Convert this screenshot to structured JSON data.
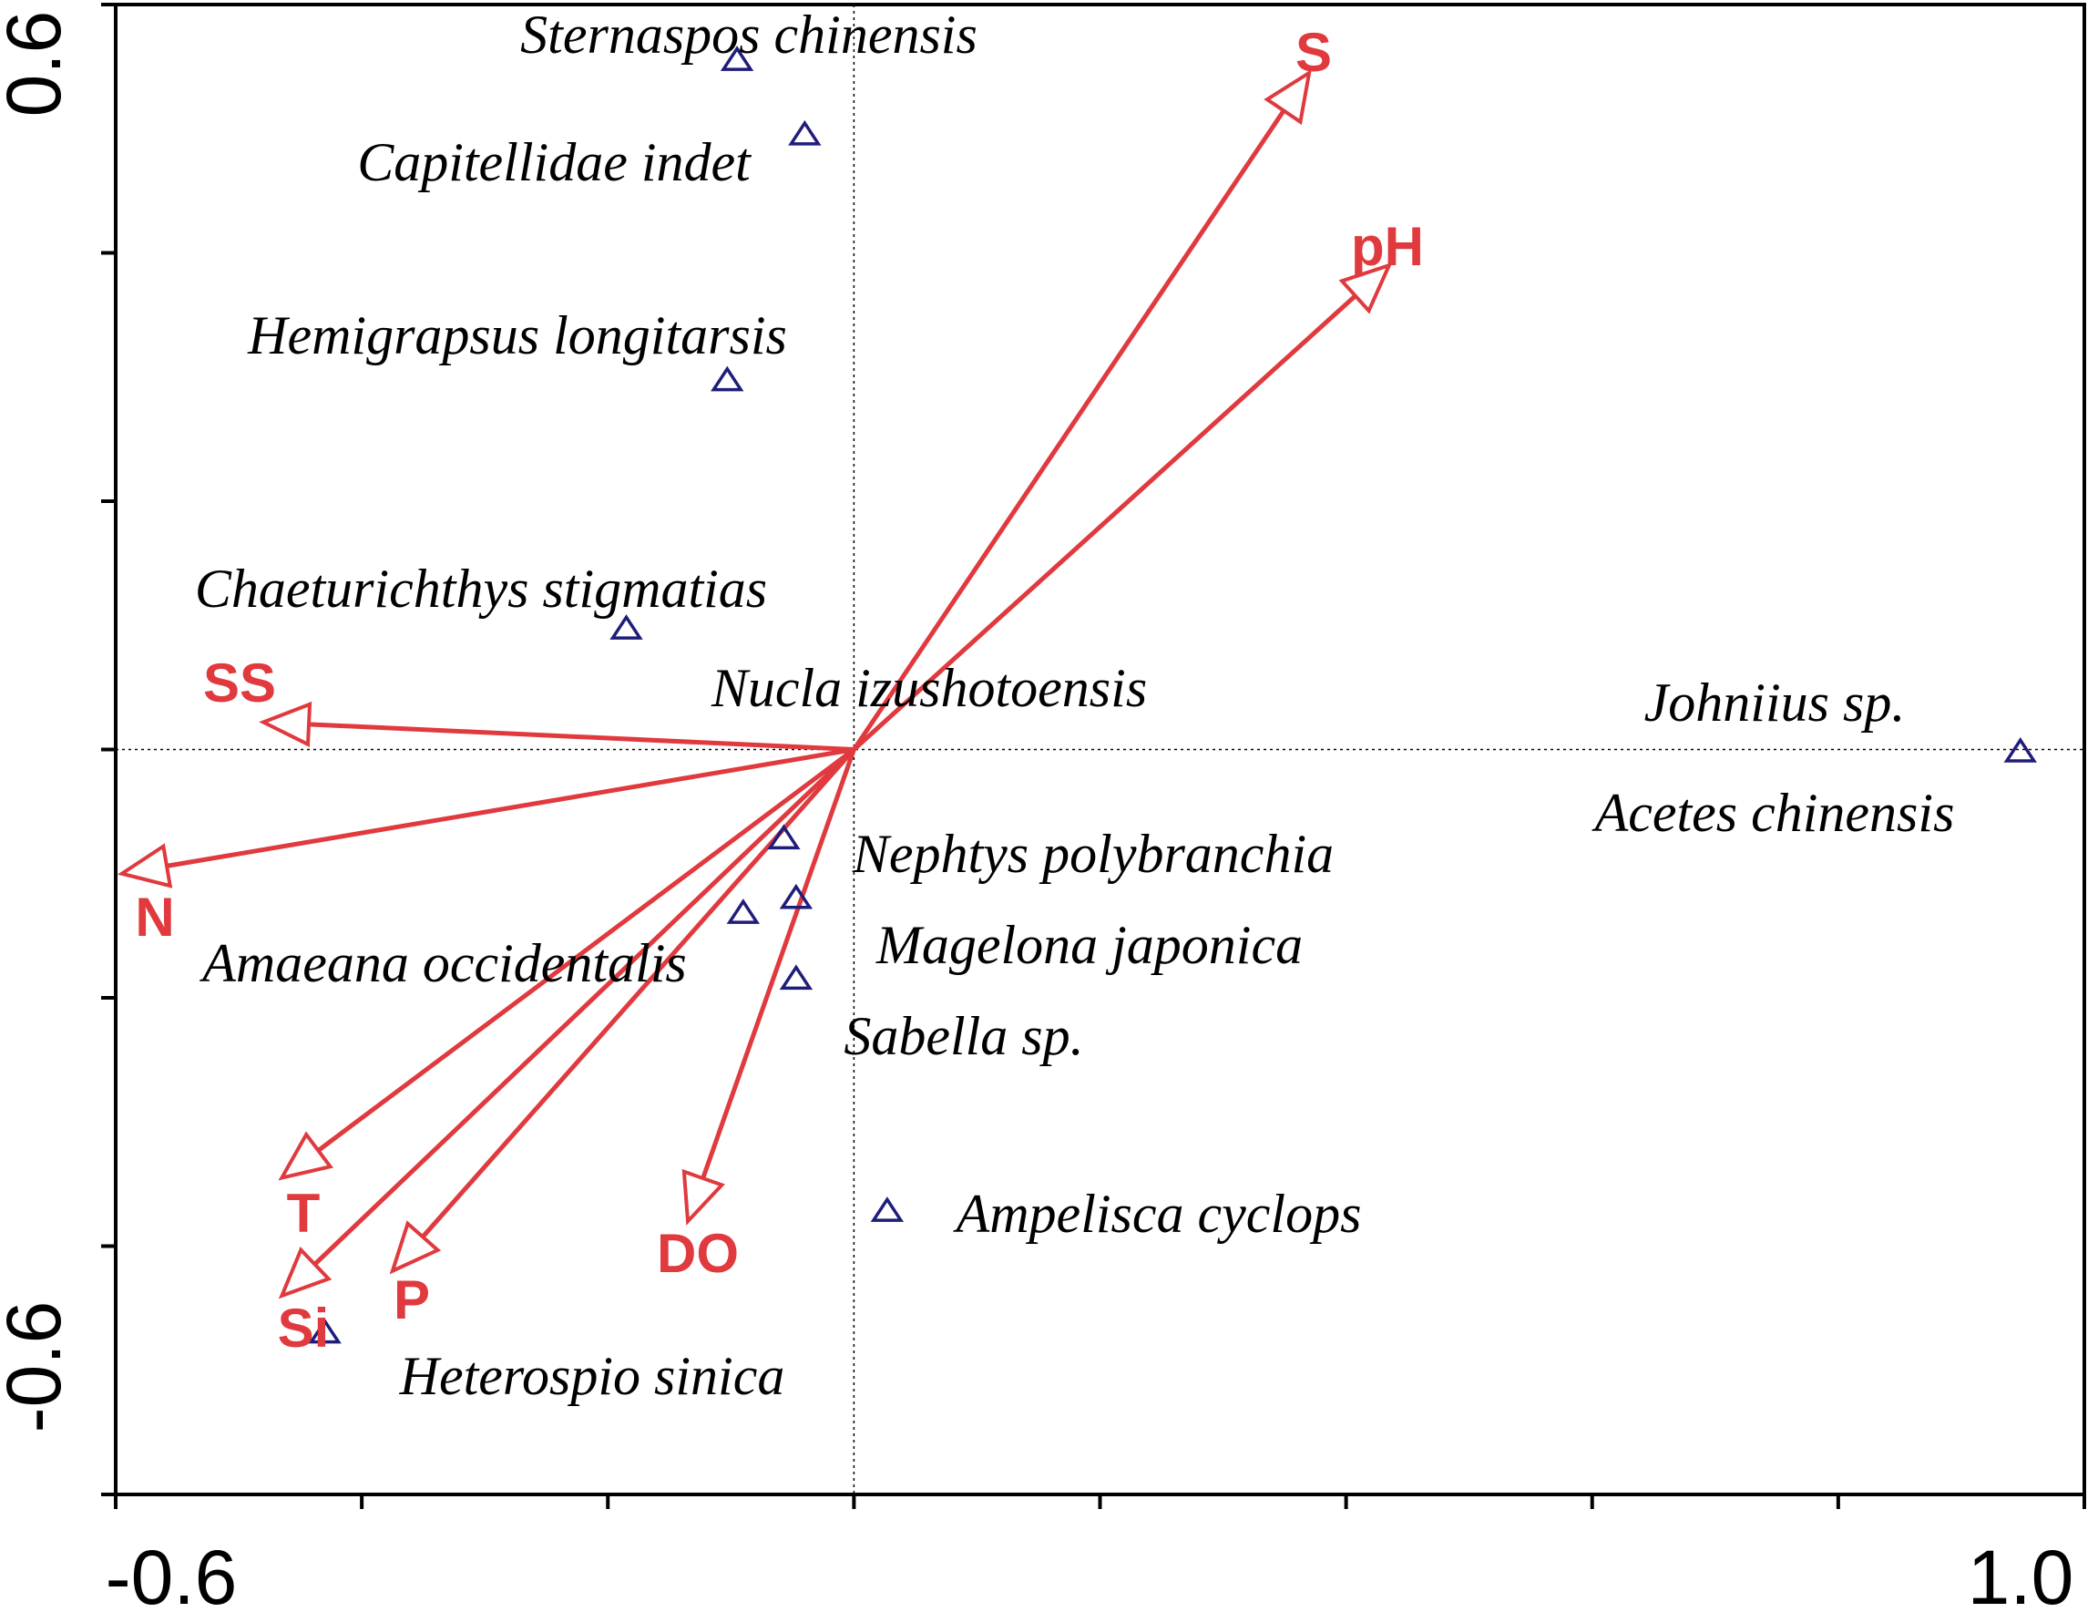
{
  "chart_data": {
    "type": "scatter",
    "subtype": "RDA ordination biplot",
    "title": "",
    "xlabel": "",
    "ylabel": "",
    "xlim": [
      -0.6,
      1.0
    ],
    "ylim": [
      -0.6,
      0.6
    ],
    "x_tick_labels": [
      "-0.6",
      "1.0"
    ],
    "y_tick_labels": [
      "0.6",
      "-0.6"
    ],
    "zero_lines": true,
    "grid": false,
    "colors": {
      "arrows": "#e0393e",
      "species_markers": "#1f1d7a",
      "text": "#000000"
    },
    "env_vectors": [
      {
        "name": "S",
        "x": 0.37,
        "y": 0.545
      },
      {
        "name": "pH",
        "x": 0.435,
        "y": 0.39
      },
      {
        "name": "SS",
        "x": -0.48,
        "y": 0.022
      },
      {
        "name": "N",
        "x": -0.595,
        "y": -0.1
      },
      {
        "name": "T",
        "x": -0.465,
        "y": -0.345
      },
      {
        "name": "Si",
        "x": -0.465,
        "y": -0.44
      },
      {
        "name": "P",
        "x": -0.375,
        "y": -0.42
      },
      {
        "name": "DO",
        "x": -0.135,
        "y": -0.38
      }
    ],
    "species": [
      {
        "name": "Sternaspos chinensis",
        "x": -0.095,
        "y": 0.555
      },
      {
        "name": "Capitellidae indet",
        "x": -0.04,
        "y": 0.495
      },
      {
        "name": "Hemigrapsus longitarsis",
        "x": -0.103,
        "y": 0.297
      },
      {
        "name": "Chaeturichthys stigmatias",
        "x": -0.185,
        "y": 0.097
      },
      {
        "name": "Nucla izushotoensis",
        "x": -0.185,
        "y": 0.097
      },
      {
        "name": "Johniius sp.",
        "x": 0.948,
        "y": -0.002
      },
      {
        "name": "Acetes chinensis",
        "x": 0.948,
        "y": -0.002
      },
      {
        "name": "Nephtys polybranchia",
        "x": -0.057,
        "y": -0.072
      },
      {
        "name": "Magelona japonica",
        "x": -0.047,
        "y": -0.12
      },
      {
        "name": "Amaeana occidentalis",
        "x": -0.09,
        "y": -0.132
      },
      {
        "name": "Sabella sp.",
        "x": -0.047,
        "y": -0.185
      },
      {
        "name": "Ampelisca cyclops",
        "x": 0.027,
        "y": -0.372
      },
      {
        "name": "Heterospio sinica",
        "x": -0.43,
        "y": -0.47
      }
    ]
  }
}
